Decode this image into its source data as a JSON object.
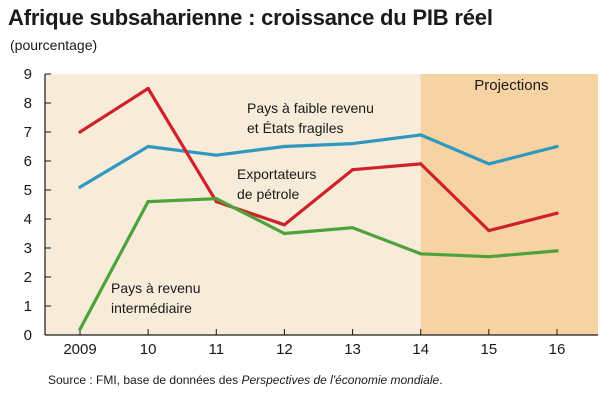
{
  "title": "Afrique subsaharienne : croissance du PIB réel",
  "subtitle": "(pourcentage)",
  "source_prefix": "Source : FMI, base de données des ",
  "source_italic": "Perspectives de l'économie mondiale",
  "source_suffix": ".",
  "colors": {
    "background_plot": "#f7ebd9",
    "projection_band": "#f7d3a3",
    "series_low_income": "#2f98bf",
    "series_oil": "#d0212a",
    "series_middle": "#4ea23a"
  },
  "chart_data": {
    "type": "line",
    "x": [
      "2009",
      "10",
      "11",
      "12",
      "13",
      "14",
      "15",
      "16"
    ],
    "ylim": [
      0,
      9
    ],
    "yticks": [
      "0",
      "1",
      "2",
      "3",
      "4",
      "5",
      "6",
      "7",
      "8",
      "9"
    ],
    "projection_label": "Projections",
    "projection_start": "14",
    "grid": false,
    "series": [
      {
        "key": "low_income",
        "label_lines": [
          "Pays à faible revenu",
          "et États fragiles"
        ],
        "color": "#2f98bf",
        "values": [
          5.1,
          6.5,
          6.2,
          6.5,
          6.6,
          6.9,
          5.9,
          6.5
        ]
      },
      {
        "key": "oil",
        "label_lines": [
          "Exportateurs",
          "de pétrole"
        ],
        "color": "#d0212a",
        "values": [
          7.0,
          8.5,
          4.6,
          3.8,
          5.7,
          5.9,
          3.6,
          4.2
        ]
      },
      {
        "key": "middle",
        "label_lines": [
          "Pays à revenu",
          "intermédiaire"
        ],
        "color": "#4ea23a",
        "values": [
          0.2,
          4.6,
          4.7,
          3.5,
          3.7,
          2.8,
          2.7,
          2.9
        ]
      }
    ]
  }
}
